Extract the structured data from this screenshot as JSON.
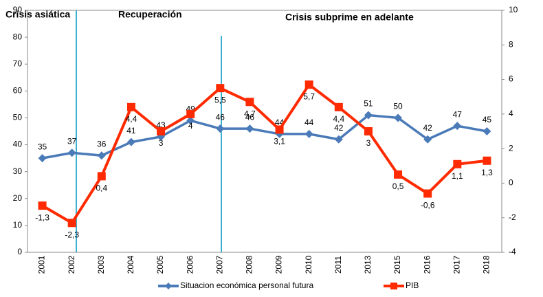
{
  "chart_data": {
    "type": "line",
    "annotations": [
      "Crisis asiática",
      "Recuperación",
      "Crisis subprime en adelante"
    ],
    "categories": [
      "2001",
      "2002",
      "2003",
      "2004",
      "2005",
      "2006",
      "2007",
      "2008",
      "2009",
      "2010",
      "2011",
      "2013",
      "2015",
      "2016",
      "2017",
      "2018"
    ],
    "series": [
      {
        "name": "Situacion económica personal futura",
        "color": "#4a7ab8",
        "marker": "diamond",
        "values": [
          35,
          37,
          36,
          41,
          43,
          49,
          46,
          46,
          44,
          44,
          42,
          51,
          50,
          42,
          47,
          45
        ]
      },
      {
        "name": "PIB",
        "color": "#ff2a00",
        "marker": "square",
        "axis": "y2",
        "values": [
          -1.3,
          -2.3,
          0.4,
          4.4,
          3,
          4,
          5.5,
          4.7,
          3.1,
          5.7,
          4.4,
          3,
          0.5,
          -0.6,
          1.1,
          1.3
        ],
        "value_labels": [
          "-1,3",
          "-2,3",
          "0,4",
          "4,4",
          "3",
          "4",
          "5,5",
          "4,7",
          "3,1",
          "5,7",
          "4,4",
          "3",
          "0,5",
          "-0,6",
          "1,1",
          "1,3"
        ]
      }
    ],
    "ylim": [
      0,
      90
    ],
    "yticks": [
      0,
      10,
      20,
      30,
      40,
      50,
      60,
      70,
      80,
      90
    ],
    "y2lim": [
      -4,
      10
    ],
    "y2ticks": [
      -4,
      -2,
      0,
      2,
      4,
      6,
      8,
      10
    ],
    "legend": "bottom"
  }
}
